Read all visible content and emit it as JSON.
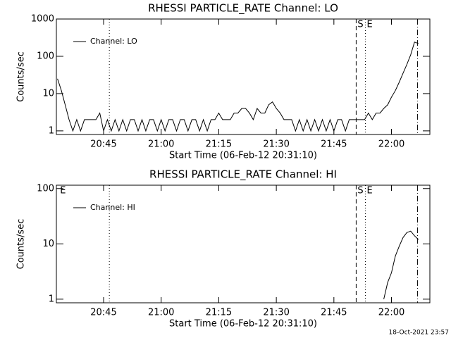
{
  "footer": "18-Oct-2021 23:57",
  "chart_data": [
    {
      "type": "line",
      "title": "RHESSI PARTICLE_RATE Channel: LO",
      "xlabel": "Start Time (06-Feb-12 20:31:10)",
      "ylabel": "Counts/sec",
      "log_y": true,
      "legend": "top-left",
      "xlim": [
        1232.7,
        1330
      ],
      "ylim": [
        0.8,
        1000
      ],
      "xticks": [
        {
          "value": 1245,
          "label": "20:45"
        },
        {
          "value": 1260,
          "label": "21:00"
        },
        {
          "value": 1275,
          "label": "21:15"
        },
        {
          "value": 1290,
          "label": "21:30"
        },
        {
          "value": 1305,
          "label": "21:45"
        },
        {
          "value": 1320,
          "label": "22:00"
        }
      ],
      "yticks": [
        1,
        10,
        100,
        1000
      ],
      "vlines": [
        {
          "x": 1246.5,
          "style": "dotted"
        },
        {
          "x": 1310.8,
          "style": "dashed"
        },
        {
          "x": 1313.2,
          "style": "dotted"
        },
        {
          "x": 1326.8,
          "style": "dashdot"
        }
      ],
      "annotations": [
        {
          "text": "S",
          "x": 1310.8
        },
        {
          "text": "E",
          "x": 1313.2
        }
      ],
      "x": [
        1233,
        1234,
        1235,
        1236,
        1237,
        1238,
        1239,
        1240,
        1241,
        1242,
        1243,
        1244,
        1245,
        1246,
        1247,
        1248,
        1249,
        1250,
        1251,
        1252,
        1253,
        1254,
        1255,
        1256,
        1257,
        1258,
        1259,
        1260,
        1261,
        1262,
        1263,
        1264,
        1265,
        1266,
        1267,
        1268,
        1269,
        1270,
        1271,
        1272,
        1273,
        1274,
        1275,
        1276,
        1277,
        1278,
        1279,
        1280,
        1281,
        1282,
        1283,
        1284,
        1285,
        1286,
        1287,
        1288,
        1289,
        1290,
        1291,
        1292,
        1293,
        1294,
        1295,
        1296,
        1297,
        1298,
        1299,
        1300,
        1301,
        1302,
        1303,
        1304,
        1305,
        1306,
        1307,
        1308,
        1309,
        1310,
        1311,
        1312,
        1313,
        1314,
        1315,
        1316,
        1317,
        1318,
        1319,
        1320,
        1321,
        1322,
        1323,
        1324,
        1325,
        1326,
        1327
      ],
      "series": [
        {
          "name": "Channel: LO",
          "color": "#000000",
          "values": [
            25,
            12,
            5,
            2,
            1,
            2,
            1,
            2,
            2,
            2,
            2,
            3,
            1,
            2,
            1,
            2,
            1,
            2,
            1,
            2,
            2,
            1,
            2,
            1,
            2,
            2,
            1,
            2,
            1,
            2,
            2,
            1,
            2,
            2,
            1,
            2,
            2,
            1,
            2,
            1,
            2,
            2,
            3,
            2,
            2,
            2,
            3,
            3,
            4,
            4,
            3,
            2,
            4,
            3,
            3,
            5,
            6,
            4,
            3,
            2,
            2,
            2,
            1,
            2,
            1,
            2,
            1,
            2,
            1,
            2,
            1,
            2,
            1,
            2,
            2,
            1,
            2,
            2,
            2,
            2,
            2,
            3,
            2,
            3,
            3,
            4,
            5,
            8,
            12,
            20,
            35,
            60,
            110,
            240,
            220
          ]
        }
      ]
    },
    {
      "type": "line",
      "title": "RHESSI PARTICLE_RATE Channel: HI",
      "xlabel": "Start Time (06-Feb-12 20:31:10)",
      "ylabel": "Counts/sec",
      "log_y": true,
      "legend": "top-left",
      "xlim": [
        1232.7,
        1330
      ],
      "ylim": [
        0.86,
        115
      ],
      "xticks": [
        {
          "value": 1245,
          "label": "20:45"
        },
        {
          "value": 1260,
          "label": "21:00"
        },
        {
          "value": 1275,
          "label": "21:15"
        },
        {
          "value": 1290,
          "label": "21:30"
        },
        {
          "value": 1305,
          "label": "21:45"
        },
        {
          "value": 1320,
          "label": "22:00"
        }
      ],
      "yticks": [
        1,
        10,
        100
      ],
      "vlines": [
        {
          "x": 1246.5,
          "style": "dotted"
        },
        {
          "x": 1310.8,
          "style": "dashed"
        },
        {
          "x": 1313.2,
          "style": "dotted"
        },
        {
          "x": 1326.8,
          "style": "dashdot"
        }
      ],
      "annotations": [
        {
          "text": "E",
          "x": 1233.3
        },
        {
          "text": "S",
          "x": 1310.8
        },
        {
          "text": "E",
          "x": 1313.2
        }
      ],
      "x": [
        1318,
        1319,
        1320,
        1321,
        1322,
        1323,
        1324,
        1325,
        1326,
        1327
      ],
      "series": [
        {
          "name": "Channel: HI",
          "color": "#000000",
          "values": [
            1,
            2,
            3,
            6,
            9,
            13,
            16,
            17,
            14,
            12
          ]
        }
      ]
    }
  ]
}
